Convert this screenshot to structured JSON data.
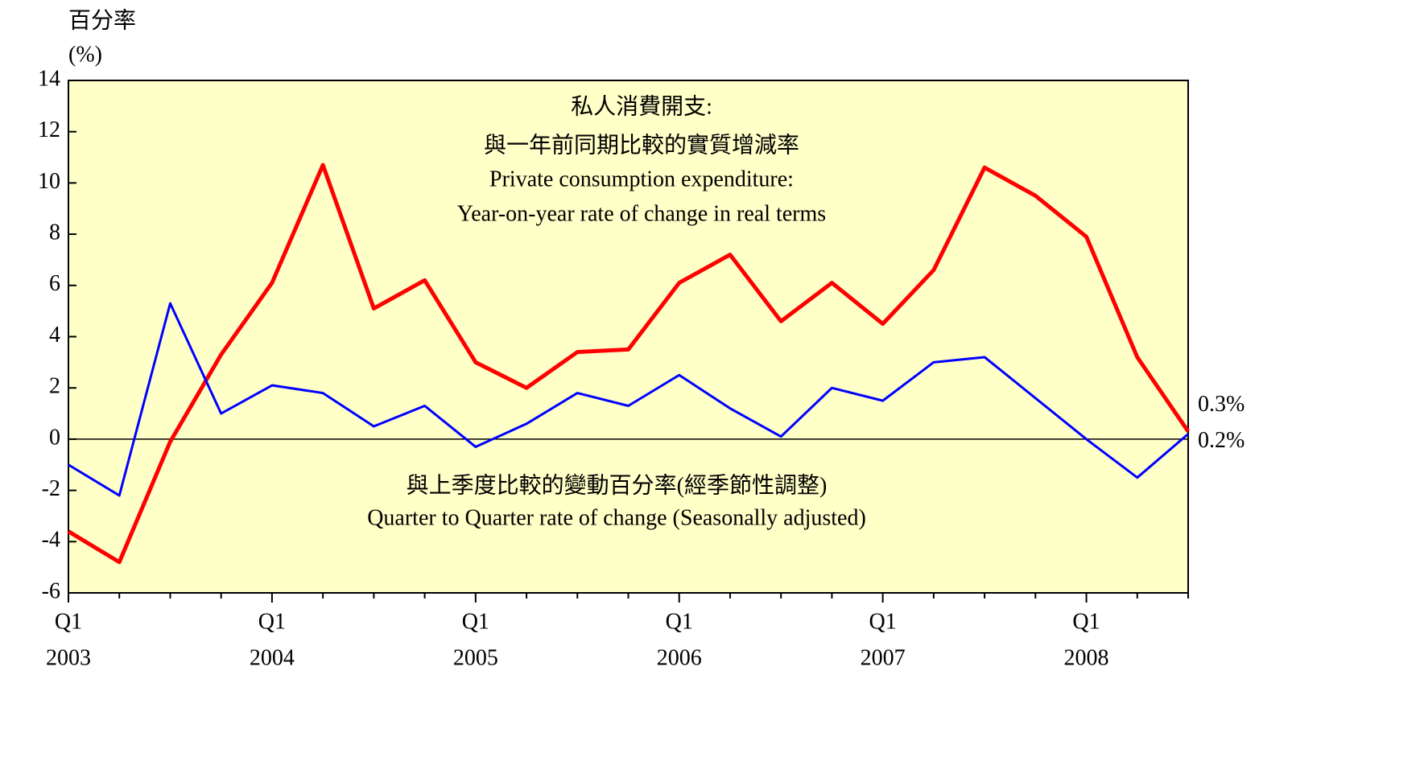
{
  "chart_data": {
    "type": "line",
    "y_axis_label": [
      "百分率",
      "(%)"
    ],
    "annotations": [
      "私人消費開支:",
      "與一年前同期比較的實質增減率",
      "Private consumption expenditure:",
      "Year-on-year rate of change in real terms",
      "與上季度比較的變動百分率(經季節性調整)",
      "Quarter to Quarter rate of change (Seasonally adjusted)"
    ],
    "categories": [
      "Q1",
      null,
      null,
      null,
      "Q1",
      null,
      null,
      null,
      "Q1",
      null,
      null,
      null,
      "Q1",
      null,
      null,
      null,
      "Q1",
      null,
      null,
      null,
      "Q1",
      null,
      null
    ],
    "category_years": [
      "2003",
      null,
      null,
      null,
      "2004",
      null,
      null,
      null,
      "2005",
      null,
      null,
      null,
      "2006",
      null,
      null,
      null,
      "2007",
      null,
      null,
      null,
      "2008",
      null,
      null
    ],
    "series": [
      {
        "color": "#ff0000",
        "width": 5,
        "values": [
          -3.6,
          -4.8,
          -0.1,
          3.3,
          6.1,
          10.7,
          5.1,
          6.2,
          3.0,
          2.0,
          3.4,
          3.5,
          6.1,
          7.2,
          4.6,
          6.1,
          4.5,
          6.6,
          10.6,
          9.5,
          7.9,
          3.2,
          0.3
        ],
        "value_labels": [
          null,
          null,
          null,
          null,
          null,
          null,
          null,
          null,
          null,
          null,
          null,
          null,
          null,
          null,
          null,
          null,
          null,
          null,
          null,
          null,
          null,
          null,
          "0.3%"
        ]
      },
      {
        "color": "#0000ff",
        "width": 3,
        "values": [
          -1.0,
          -2.2,
          5.3,
          1.0,
          2.1,
          1.8,
          0.5,
          1.3,
          -0.3,
          0.6,
          1.8,
          1.3,
          2.5,
          1.2,
          0.1,
          2.0,
          1.5,
          3.0,
          3.2,
          1.6,
          0.0,
          -1.5,
          0.2
        ],
        "value_labels": [
          null,
          null,
          null,
          null,
          null,
          null,
          null,
          null,
          null,
          null,
          null,
          null,
          null,
          null,
          null,
          null,
          null,
          null,
          null,
          null,
          null,
          null,
          "0.2%"
        ]
      }
    ],
    "ylim": [
      -6,
      14
    ],
    "yticks": [
      -6,
      -4,
      -2,
      0,
      2,
      4,
      6,
      8,
      10,
      12,
      14
    ],
    "background": "#ffffc8"
  }
}
